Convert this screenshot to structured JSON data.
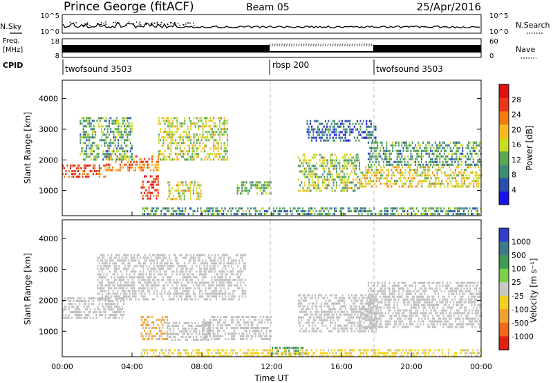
{
  "title": {
    "station": "Prince George (fitACF)",
    "beam": "Beam 05",
    "date": "25/Apr/2016"
  },
  "header_panels": {
    "nsky": {
      "label": "N.Sky",
      "right_label": "N.Search",
      "left_ticks": [
        "10^5",
        "10^0"
      ],
      "right_ticks": [
        "10^5",
        "10^0"
      ]
    },
    "freq": {
      "label_line1": "Freq.",
      "label_line2": "[MHz]",
      "right_label": "Nave",
      "left_ticks": [
        "18",
        "8"
      ],
      "right_ticks": [
        "60",
        "0"
      ]
    },
    "cpid": {
      "label": "CPID",
      "segments": [
        {
          "label": "twofsound 3503",
          "start_h": 0,
          "end_h": 12
        },
        {
          "label": "rbsp 200",
          "start_h": 12,
          "end_h": 18
        },
        {
          "label": "twofsound 3503",
          "start_h": 18,
          "end_h": 24
        }
      ]
    }
  },
  "colors": {
    "power_scale": [
      "#1a10e8",
      "#2a4fb0",
      "#3e8c70",
      "#5aa850",
      "#c8dc20",
      "#f8b820",
      "#f07c10",
      "#e83818",
      "#e01010"
    ],
    "velocity_scale": [
      "#3040c8",
      "#3f7a8a",
      "#3f9a55",
      "#7ad048",
      "#c8c8c0",
      "#f0d020",
      "#f0a030",
      "#f06820",
      "#e02010"
    ],
    "ground_scatter": "#bdbdbd",
    "dash": "#bbbbbb"
  },
  "chart_data": [
    {
      "type": "heatmap",
      "name": "power",
      "ylabel": "Slant Range [km]",
      "xlabel": "Time UT",
      "xlim": [
        0,
        24
      ],
      "ylim": [
        180,
        4600
      ],
      "yticks": [
        1000,
        2000,
        3000,
        4000
      ],
      "xticks": [
        "00:00",
        "04:00",
        "08:00",
        "12:00",
        "16:00",
        "20:00",
        "00:00"
      ],
      "colorbar": {
        "label": "Power [dB]",
        "ticks": [
          4,
          8,
          12,
          16,
          20,
          24,
          28
        ],
        "range": [
          0,
          32
        ]
      },
      "regions": [
        {
          "t0": 0.0,
          "t1": 2.5,
          "r0": 1450,
          "r1": 1850,
          "level": 27
        },
        {
          "t0": 2.5,
          "t1": 5.5,
          "r0": 1650,
          "r1": 2150,
          "level": 24
        },
        {
          "t0": 4.5,
          "t1": 5.5,
          "r0": 700,
          "r1": 1500,
          "level": 29
        },
        {
          "t0": 6.0,
          "t1": 8.0,
          "r0": 700,
          "r1": 1300,
          "level": 17
        },
        {
          "t0": 5.5,
          "t1": 9.5,
          "r0": 2000,
          "r1": 3400,
          "level": 16
        },
        {
          "t0": 1.0,
          "t1": 4.0,
          "r0": 2000,
          "r1": 3400,
          "level": 11
        },
        {
          "t0": 10.0,
          "t1": 12.0,
          "r0": 900,
          "r1": 1300,
          "level": 12
        },
        {
          "t0": 4.5,
          "t1": 24.0,
          "r0": 250,
          "r1": 450,
          "level": 9
        },
        {
          "t0": 13.5,
          "t1": 17.0,
          "r0": 1000,
          "r1": 2200,
          "level": 14
        },
        {
          "t0": 17.0,
          "t1": 24.0,
          "r0": 1100,
          "r1": 1800,
          "level": 18
        },
        {
          "t0": 17.5,
          "t1": 24.0,
          "r0": 1800,
          "r1": 2600,
          "level": 10
        },
        {
          "t0": 14.0,
          "t1": 18.0,
          "r0": 2600,
          "r1": 3300,
          "level": 5
        }
      ]
    },
    {
      "type": "heatmap",
      "name": "velocity",
      "ylabel": "Slant Range [km]",
      "xlabel": "Time UT",
      "xlim": [
        0,
        24
      ],
      "ylim": [
        180,
        4600
      ],
      "yticks": [
        1000,
        2000,
        3000,
        4000
      ],
      "xticks": [
        "00:00",
        "04:00",
        "08:00",
        "12:00",
        "16:00",
        "20:00",
        "00:00"
      ],
      "colorbar": {
        "label": "Velocity [m s⁻¹]",
        "ticks": [
          "1000",
          "500",
          "100",
          "25",
          "-25",
          "-100",
          "-500",
          "-1000"
        ]
      },
      "regions": [
        {
          "t0": 0.0,
          "t1": 3.5,
          "r0": 1400,
          "r1": 2100,
          "level": "gs"
        },
        {
          "t0": 2.0,
          "t1": 10.5,
          "r0": 2000,
          "r1": 3500,
          "level": "gs"
        },
        {
          "t0": 4.5,
          "t1": 6.0,
          "r0": 700,
          "r1": 1500,
          "level": -300
        },
        {
          "t0": 6.0,
          "t1": 8.5,
          "r0": 700,
          "r1": 1300,
          "level": "gs"
        },
        {
          "t0": 8.0,
          "t1": 12.0,
          "r0": 700,
          "r1": 1500,
          "level": "gs"
        },
        {
          "t0": 12.0,
          "t1": 14.0,
          "r0": 250,
          "r1": 500,
          "level": 120
        },
        {
          "t0": 4.5,
          "t1": 24.0,
          "r0": 220,
          "r1": 420,
          "level": -60
        },
        {
          "t0": 13.5,
          "t1": 18.0,
          "r0": 1000,
          "r1": 2200,
          "level": "gs"
        },
        {
          "t0": 17.0,
          "t1": 24.0,
          "r0": 1100,
          "r1": 1800,
          "level": "gs"
        },
        {
          "t0": 17.5,
          "t1": 24.0,
          "r0": 1800,
          "r1": 2600,
          "level": "gs"
        }
      ]
    }
  ],
  "axes": {
    "time_label": "Time UT"
  }
}
